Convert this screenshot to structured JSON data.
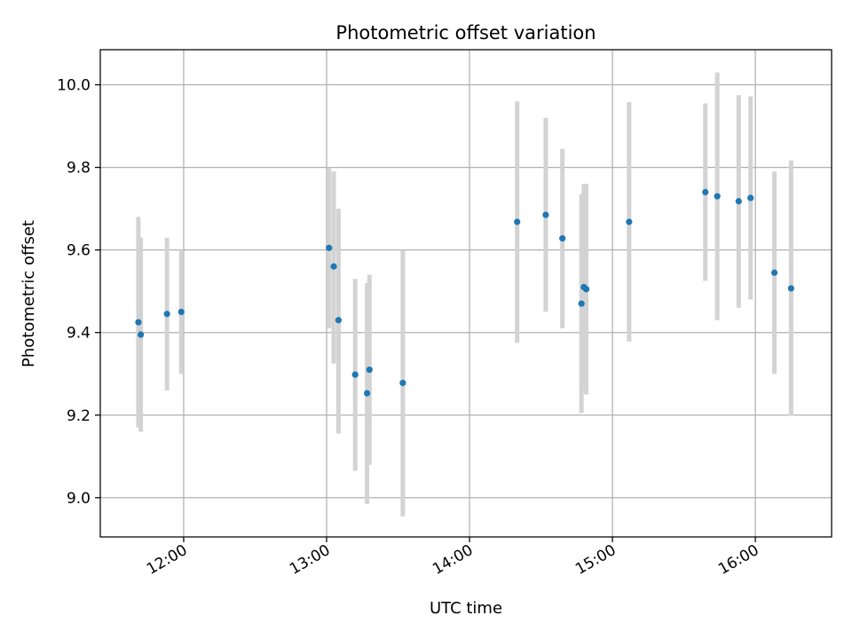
{
  "chart_data": {
    "type": "scatter",
    "title": "Photometric offset variation",
    "xlabel": "UTC time",
    "ylabel": "Photometric offset",
    "x_unit": "UTC time of day",
    "xlim": [
      "11:25",
      "16:32"
    ],
    "ylim": [
      8.905,
      10.085
    ],
    "x_ticks": [
      "12:00",
      "13:00",
      "14:00",
      "15:00",
      "16:00"
    ],
    "y_ticks": [
      "9.0",
      "9.2",
      "9.4",
      "9.6",
      "9.8",
      "10.0"
    ],
    "grid": true,
    "legend": "none",
    "colors": {
      "points": "#1f77b4",
      "errorbars": "#d3d3d3",
      "grid": "#b0b0b0",
      "axes": "#000000"
    },
    "points": [
      {
        "x": "11:41",
        "y": 9.425,
        "ylow": 9.17,
        "yhigh": 9.68
      },
      {
        "x": "11:42",
        "y": 9.395,
        "ylow": 9.16,
        "yhigh": 9.63
      },
      {
        "x": "11:53",
        "y": 9.445,
        "ylow": 9.26,
        "yhigh": 9.63
      },
      {
        "x": "11:59",
        "y": 9.45,
        "ylow": 9.3,
        "yhigh": 9.6
      },
      {
        "x": "13:01",
        "y": 9.605,
        "ylow": 9.41,
        "yhigh": 9.8
      },
      {
        "x": "13:03",
        "y": 9.56,
        "ylow": 9.325,
        "yhigh": 9.79
      },
      {
        "x": "13:05",
        "y": 9.43,
        "ylow": 9.155,
        "yhigh": 9.7
      },
      {
        "x": "13:12",
        "y": 9.298,
        "ylow": 9.065,
        "yhigh": 9.53
      },
      {
        "x": "13:17",
        "y": 9.253,
        "ylow": 8.985,
        "yhigh": 9.52
      },
      {
        "x": "13:18",
        "y": 9.31,
        "ylow": 9.08,
        "yhigh": 9.54
      },
      {
        "x": "13:32",
        "y": 9.278,
        "ylow": 8.955,
        "yhigh": 9.6
      },
      {
        "x": "14:20",
        "y": 9.668,
        "ylow": 9.375,
        "yhigh": 9.96
      },
      {
        "x": "14:32",
        "y": 9.685,
        "ylow": 9.45,
        "yhigh": 9.92
      },
      {
        "x": "14:39",
        "y": 9.628,
        "ylow": 9.41,
        "yhigh": 9.845
      },
      {
        "x": "14:47",
        "y": 9.47,
        "ylow": 9.205,
        "yhigh": 9.735
      },
      {
        "x": "14:48",
        "y": 9.51,
        "ylow": 9.26,
        "yhigh": 9.76
      },
      {
        "x": "14:49",
        "y": 9.505,
        "ylow": 9.25,
        "yhigh": 9.76
      },
      {
        "x": "15:07",
        "y": 9.668,
        "ylow": 9.378,
        "yhigh": 9.958
      },
      {
        "x": "15:39",
        "y": 9.74,
        "ylow": 9.525,
        "yhigh": 9.955
      },
      {
        "x": "15:44",
        "y": 9.73,
        "ylow": 9.43,
        "yhigh": 10.03
      },
      {
        "x": "15:53",
        "y": 9.718,
        "ylow": 9.46,
        "yhigh": 9.975
      },
      {
        "x": "15:58",
        "y": 9.726,
        "ylow": 9.48,
        "yhigh": 9.972
      },
      {
        "x": "16:08",
        "y": 9.545,
        "ylow": 9.3,
        "yhigh": 9.79
      },
      {
        "x": "16:15",
        "y": 9.507,
        "ylow": 9.198,
        "yhigh": 9.817
      }
    ]
  }
}
